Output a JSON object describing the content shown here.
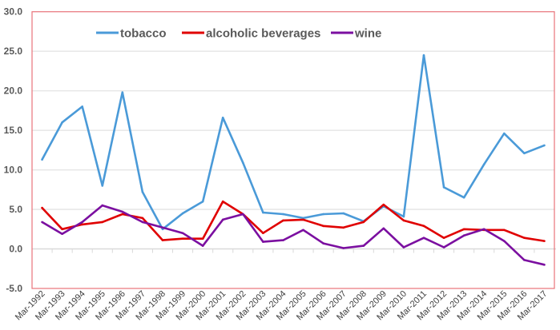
{
  "chart_data": {
    "type": "line",
    "title": "",
    "xlabel": "",
    "ylabel": "",
    "ylim": [
      -5,
      30
    ],
    "yticks": [
      "30.0",
      "25.0",
      "20.0",
      "15.0",
      "10.0",
      "5.0",
      "0.0",
      "-5.0"
    ],
    "ytick_values": [
      30,
      25,
      20,
      15,
      10,
      5,
      0,
      -5
    ],
    "grid": true,
    "legend_position": "top",
    "categories": [
      "Mar-1992",
      "Mar-1993",
      "Mar-1994",
      "Mar-1995",
      "Mar-1996",
      "Mar-1997",
      "Mar-1998",
      "Mar-1999",
      "Mar-2000",
      "Mar-2001",
      "Mar-2002",
      "Mar-2003",
      "Mar-2004",
      "Mar-2005",
      "Mar-2006",
      "Mar-2007",
      "Mar-2008",
      "Mar-2009",
      "Mar-2010",
      "Mar-2011",
      "Mar-2012",
      "Mar-2013",
      "Mar-2014",
      "Mar-2015",
      "Mar-2016",
      "Mar-2017"
    ],
    "series": [
      {
        "name": "tobacco",
        "color": "#4a9ad8",
        "values": [
          11.3,
          16.0,
          18.0,
          8.0,
          19.8,
          7.2,
          2.5,
          4.5,
          6.0,
          16.6,
          10.9,
          4.6,
          4.4,
          3.9,
          4.4,
          4.5,
          3.5,
          5.4,
          4.1,
          24.5,
          7.8,
          6.5,
          10.7,
          14.6,
          12.1,
          13.1
        ]
      },
      {
        "name": "alcoholic beverages",
        "color": "#e00000",
        "values": [
          5.2,
          2.5,
          3.1,
          3.4,
          4.4,
          3.9,
          1.1,
          1.3,
          1.3,
          6.0,
          4.4,
          2.0,
          3.6,
          3.7,
          2.9,
          2.7,
          3.4,
          5.6,
          3.6,
          2.9,
          1.4,
          2.5,
          2.4,
          2.4,
          1.4,
          1.0
        ]
      },
      {
        "name": "wine",
        "color": "#7b0fa0",
        "values": [
          3.4,
          1.9,
          3.4,
          5.5,
          4.7,
          3.4,
          2.7,
          2.0,
          0.4,
          3.7,
          4.4,
          0.9,
          1.1,
          2.4,
          0.7,
          0.1,
          0.4,
          2.6,
          0.2,
          1.4,
          0.2,
          1.7,
          2.5,
          1.0,
          -1.4,
          -2.0
        ]
      }
    ]
  }
}
